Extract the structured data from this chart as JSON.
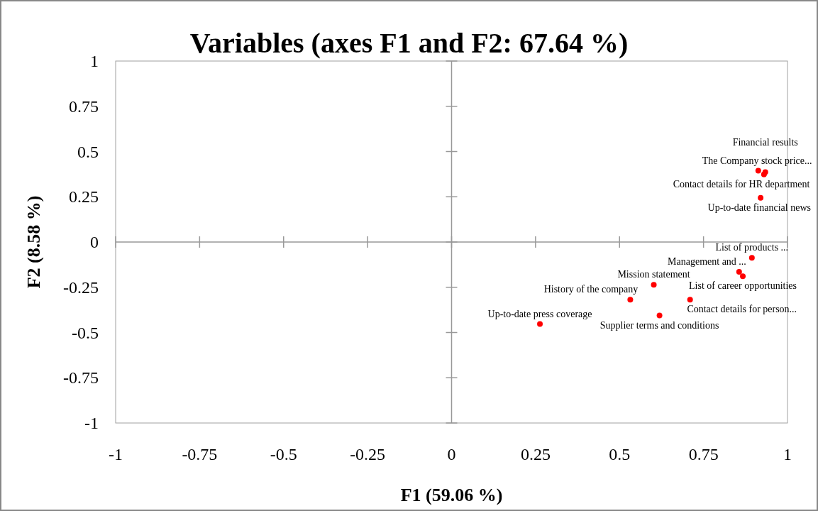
{
  "chart_data": {
    "type": "scatter",
    "title": "Variables (axes F1 and F2: 67.64 %)",
    "xlabel": "F1 (59.06 %)",
    "ylabel": "F2 (8.58 %)",
    "xlim": [
      -1,
      1
    ],
    "ylim": [
      -1,
      1
    ],
    "xticks": [
      -1,
      -0.75,
      -0.5,
      -0.25,
      0,
      0.25,
      0.5,
      0.75,
      1
    ],
    "yticks": [
      -1,
      -0.75,
      -0.5,
      -0.25,
      0,
      0.25,
      0.5,
      0.75,
      1
    ],
    "marker": "circle",
    "series": [
      {
        "color": "#ff0000",
        "x": [
          0.913,
          0.934,
          0.93,
          0.92,
          0.894,
          0.856,
          0.867,
          0.71,
          0.602,
          0.532,
          0.619,
          0.263
        ],
        "values": [
          0.394,
          0.386,
          0.374,
          0.244,
          -0.087,
          -0.165,
          -0.189,
          -0.319,
          -0.236,
          -0.319,
          -0.406,
          -0.453
        ],
        "value_labels": [
          "The Company stock price...",
          "Financial results",
          "Contact details for HR department",
          "Up-to-date financial news",
          "List of products ...",
          "Management and ...",
          "List of career opportunities",
          "Contact details for person...",
          "Mission statement",
          "History of the company",
          "Supplier terms and conditions",
          "Up-to-date press coverage"
        ]
      }
    ]
  }
}
